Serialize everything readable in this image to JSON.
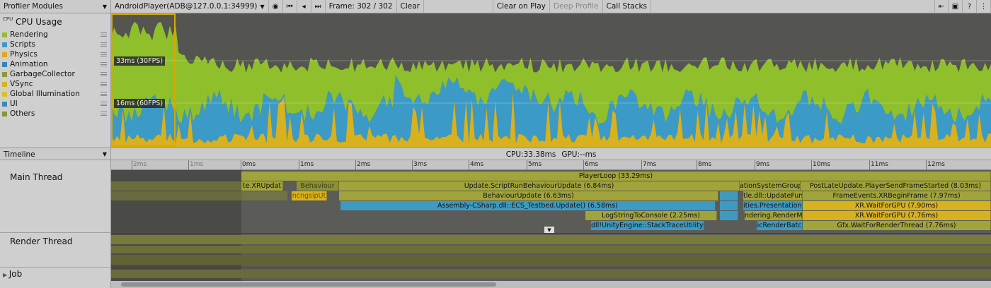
{
  "toolbar": {
    "modules_label": "Profiler Modules",
    "target_label": "AndroidPlayer(ADB@127.0.0.1:34999)",
    "frame_label": "Frame: 302 / 302",
    "clear_label": "Clear",
    "clear_on_play_label": "Clear on Play",
    "deep_profile_label": "Deep Profile",
    "call_stacks_label": "Call Stacks"
  },
  "cpu_module": {
    "title": "CPU Usage",
    "icon_text": "CPU",
    "legend": [
      {
        "label": "Rendering",
        "color": "#8fbf2a"
      },
      {
        "label": "Scripts",
        "color": "#3b9bc6"
      },
      {
        "label": "Physics",
        "color": "#e0a61e"
      },
      {
        "label": "Animation",
        "color": "#3a84b9"
      },
      {
        "label": "GarbageCollector",
        "color": "#8a9a3a"
      },
      {
        "label": "VSync",
        "color": "#d8b11e"
      },
      {
        "label": "Global Illumination",
        "color": "#d4c42a"
      },
      {
        "label": "UI",
        "color": "#3a8ab0"
      },
      {
        "label": "Others",
        "color": "#8a9431"
      }
    ],
    "fps_labels": [
      "33ms (30FPS)",
      "16ms (60FPS)"
    ]
  },
  "timeline": {
    "dropdown_label": "Timeline",
    "cpu_stat": "CPU:33.38ms",
    "gpu_stat": "GPU:--ms",
    "ruler_labels": [
      "2ms",
      "1ms",
      "0ms",
      "1ms",
      "2ms",
      "3ms",
      "4ms",
      "5ms",
      "6ms",
      "7ms",
      "8ms",
      "9ms",
      "10ms",
      "11ms",
      "12ms"
    ],
    "threads": {
      "main": "Main Thread",
      "render": "Render Thread",
      "job": "Job"
    },
    "blocks": {
      "player_loop": "PlayerLoop (33.29ms)",
      "xr_update": "te.XRUpdat",
      "behaviour_small": "Behaviour",
      "script_run": "Update.ScriptRunBehaviourUpdate (6.84ms)",
      "presentation_group": "ationSystemGroup (",
      "post_late_update": "PostLateUpdate.PlayerSendFrameStarted (8.03ms)",
      "unity_ppt": "ncngsipUt",
      "behaviour_update": "BehaviourUpdate (6.63ms)",
      "update_func": "tle.dll::UpdateFunc",
      "frame_events": "FrameEvents.XRBeginFrame (7.97ms)",
      "ecs_update": "Assembly-CSharp.dll::ECS_Testbed.Update() (6.58ms)",
      "presentation_s": "ities.PresentationS",
      "wait_gpu_1": "XR.WaitForGPU (7.90ms)",
      "log_string": "LogStringToConsole (2.25ms)",
      "rendering_render": "ndering.RenderM",
      "wait_gpu_2": "XR.WaitForGPU (7.76ms)",
      "stack_trace": "dll!UnityEngine::StackTraceUtility::Extra",
      "render_batch": "icRenderBatc",
      "gfx_wait": "Gfx.WaitForRenderThread (7.76ms)"
    }
  }
}
